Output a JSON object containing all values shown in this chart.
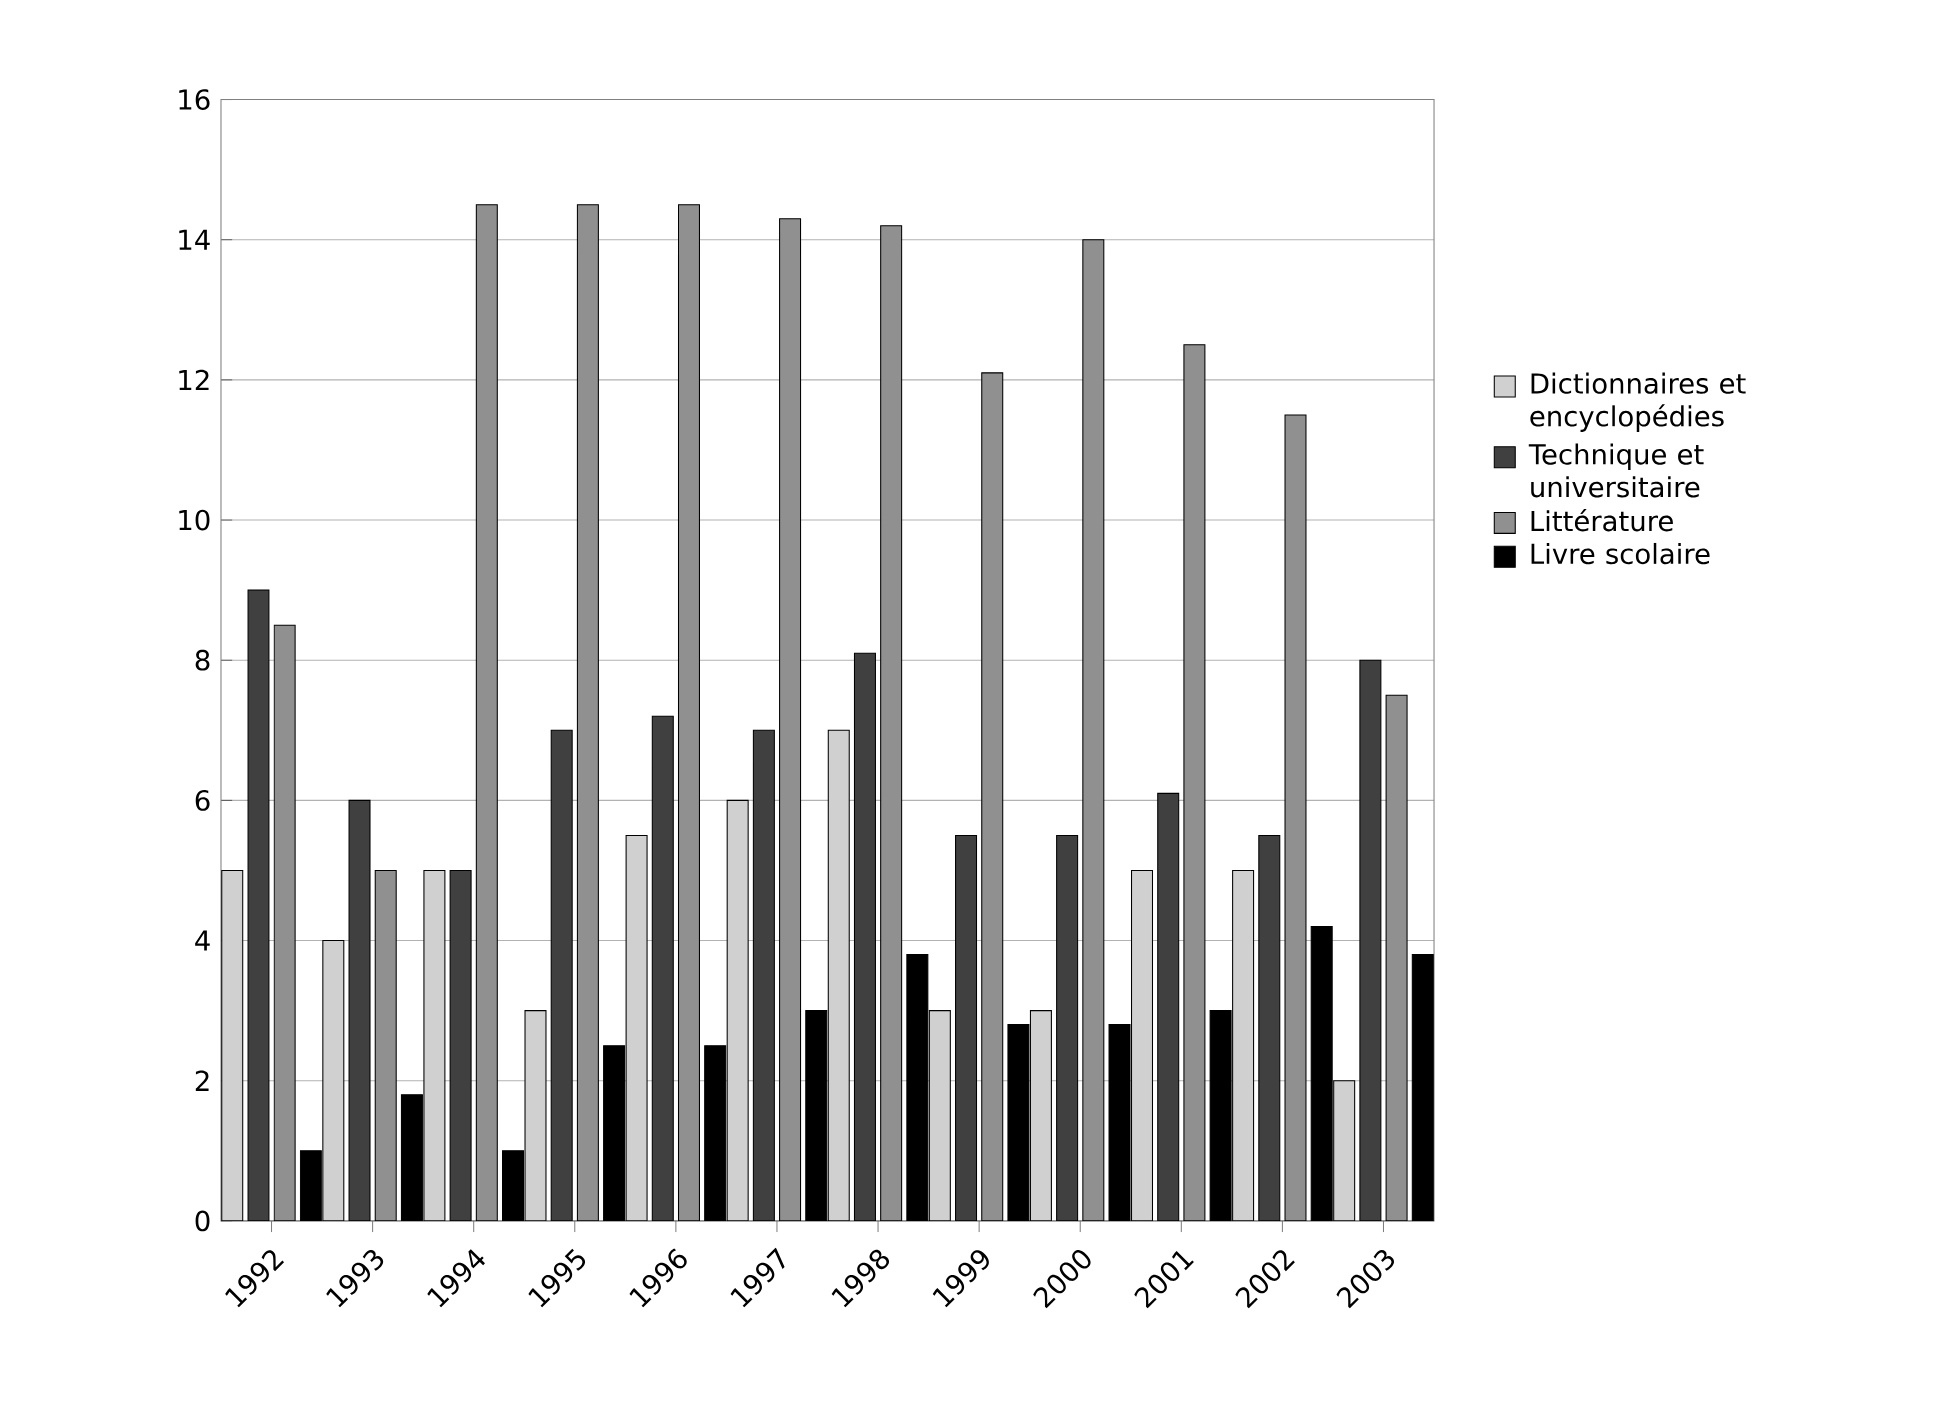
{
  "chart_data": {
    "type": "bar",
    "categories": [
      "1992",
      "1993",
      "1994",
      "1995",
      "1996",
      "1997",
      "1998",
      "1999",
      "2000",
      "2001",
      "2002",
      "2003"
    ],
    "series": [
      {
        "name": "Dictionnaires et encyclopédies",
        "color": "#d0d0d0",
        "values": [
          5,
          4,
          5,
          3,
          5.5,
          6,
          7,
          3,
          3,
          5,
          5,
          2
        ]
      },
      {
        "name": "Technique et universitaire",
        "color": "#404040",
        "values": [
          9,
          6,
          5,
          7,
          7.2,
          7,
          8.1,
          5.5,
          5.5,
          6.1,
          5.5,
          8
        ]
      },
      {
        "name": "Littérature",
        "color": "#909090",
        "values": [
          8.5,
          5,
          14.5,
          14.5,
          14.5,
          14.3,
          14.2,
          12.1,
          14,
          12.5,
          11.5,
          7.5
        ]
      },
      {
        "name": "Livre scolaire",
        "color": "#000000",
        "values": [
          1,
          1.8,
          1,
          2.5,
          2.5,
          3,
          3.8,
          2.8,
          2.8,
          3,
          4.2,
          3.8
        ]
      }
    ],
    "ylim": [
      0,
      16
    ],
    "yticks": [
      0,
      2,
      4,
      6,
      8,
      10,
      12,
      14,
      16
    ],
    "grid": "y",
    "legend": "right"
  }
}
